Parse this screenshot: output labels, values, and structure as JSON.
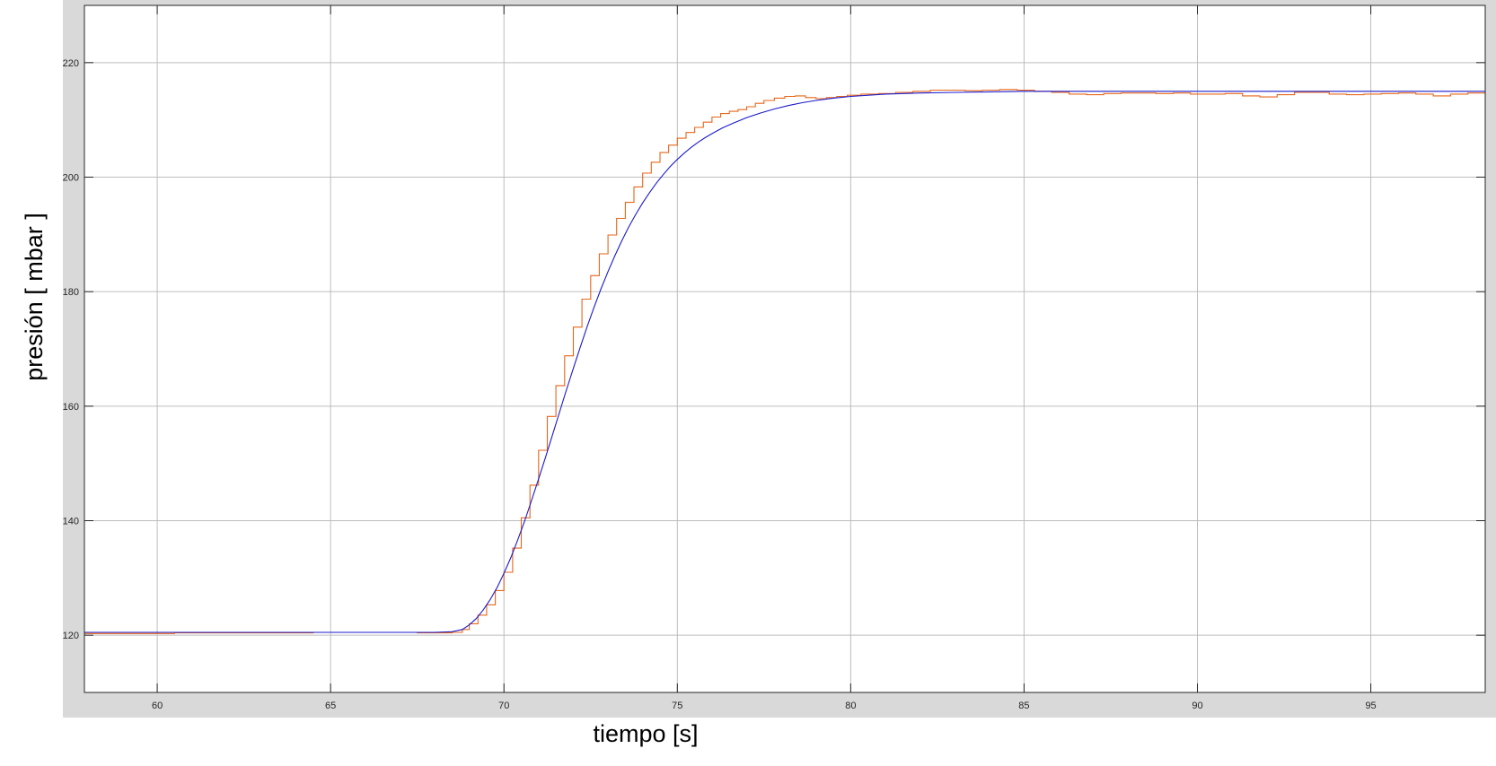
{
  "chart_data": {
    "type": "line",
    "title": "",
    "xlabel": "tiempo [s]",
    "ylabel": "presión [ mbar ]",
    "xlim": [
      57.9,
      98.3
    ],
    "ylim": [
      110,
      230
    ],
    "xticks": [
      60,
      65,
      70,
      75,
      80,
      85,
      90,
      95
    ],
    "yticks": [
      120,
      140,
      160,
      180,
      200,
      220
    ],
    "grid": true,
    "legend": "none",
    "colors": {
      "axes_background": "#ffffff",
      "figure_background": "#d9d9d9",
      "grid": "#bdbdbd",
      "axis_box": "#262626"
    },
    "series": [
      {
        "style": "line",
        "color": "#1a1acc",
        "x": [
          57.9,
          60,
          62,
          64,
          66,
          67,
          68,
          68.5,
          68.8,
          69.0,
          69.2,
          69.4,
          69.6,
          69.8,
          70.0,
          70.2,
          70.4,
          70.6,
          70.8,
          71.0,
          71.2,
          71.4,
          71.6,
          71.8,
          72.0,
          72.2,
          72.4,
          72.6,
          72.8,
          73.0,
          73.2,
          73.4,
          73.6,
          73.8,
          74.0,
          74.2,
          74.4,
          74.6,
          74.8,
          75.0,
          75.2,
          75.4,
          75.6,
          75.8,
          76.0,
          76.3,
          76.6,
          77.0,
          77.4,
          77.8,
          78.2,
          78.6,
          79.0,
          79.5,
          80.0,
          81.0,
          82.0,
          83.0,
          84.0,
          85.0,
          86.0,
          88.0,
          90.0,
          92.0,
          94.0,
          96.0,
          98.3
        ],
        "y": [
          120.5,
          120.5,
          120.5,
          120.5,
          120.5,
          120.5,
          120.5,
          120.6,
          121.0,
          121.8,
          122.9,
          124.4,
          126.2,
          128.3,
          130.8,
          133.6,
          136.7,
          140.0,
          143.6,
          147.3,
          151.1,
          155.0,
          158.9,
          162.8,
          166.6,
          170.3,
          173.9,
          177.3,
          180.5,
          183.5,
          186.3,
          188.9,
          191.3,
          193.5,
          195.5,
          197.3,
          199.0,
          200.5,
          201.9,
          203.1,
          204.2,
          205.2,
          206.1,
          206.9,
          207.6,
          208.6,
          209.4,
          210.4,
          211.2,
          211.9,
          212.5,
          213.0,
          213.4,
          213.8,
          214.1,
          214.5,
          214.7,
          214.8,
          214.9,
          215.0,
          215.0,
          215.0,
          215.0,
          215.0,
          215.0,
          215.0,
          215.0
        ]
      },
      {
        "style": "step",
        "color": "#e8661a",
        "x": [
          57.9,
          60.5,
          63.0,
          64.5,
          66.5,
          67.5,
          68.5,
          68.8,
          69.0,
          69.25,
          69.5,
          69.75,
          70.0,
          70.25,
          70.5,
          70.75,
          71.0,
          71.25,
          71.5,
          71.75,
          72.0,
          72.25,
          72.5,
          72.75,
          73.0,
          73.25,
          73.5,
          73.75,
          74.0,
          74.25,
          74.5,
          74.75,
          75.0,
          75.25,
          75.5,
          75.75,
          76.0,
          76.25,
          76.5,
          76.75,
          77.0,
          77.25,
          77.5,
          77.8,
          78.1,
          78.4,
          78.7,
          79.0,
          79.3,
          79.6,
          79.9,
          80.3,
          80.8,
          81.3,
          81.8,
          82.3,
          82.8,
          83.3,
          83.8,
          84.3,
          84.8,
          85.3,
          85.8,
          86.3,
          86.8,
          87.3,
          87.8,
          88.3,
          88.8,
          89.3,
          89.8,
          90.3,
          90.8,
          91.3,
          91.8,
          92.3,
          92.8,
          93.3,
          93.8,
          94.3,
          94.8,
          95.3,
          95.8,
          96.3,
          96.8,
          97.3,
          97.8
        ],
        "y": [
          120.3,
          120.4,
          120.4,
          120.5,
          120.5,
          120.4,
          120.5,
          121.0,
          122.0,
          123.5,
          125.3,
          127.8,
          131.0,
          135.2,
          140.5,
          146.2,
          152.3,
          158.2,
          163.6,
          168.8,
          173.8,
          178.7,
          182.8,
          186.6,
          189.9,
          192.8,
          195.6,
          198.3,
          200.7,
          202.6,
          204.3,
          205.6,
          206.8,
          207.8,
          208.7,
          209.6,
          210.5,
          211.1,
          211.5,
          211.8,
          212.3,
          212.9,
          213.4,
          213.8,
          214.1,
          214.2,
          213.9,
          213.7,
          213.9,
          214.1,
          214.3,
          214.5,
          214.6,
          214.8,
          215.0,
          215.2,
          215.2,
          215.1,
          215.2,
          215.3,
          215.2,
          215.0,
          214.8,
          214.5,
          214.4,
          214.6,
          214.7,
          214.7,
          214.6,
          214.7,
          214.5,
          214.5,
          214.6,
          214.2,
          214.0,
          214.4,
          214.8,
          214.8,
          214.5,
          214.4,
          214.5,
          214.6,
          214.7,
          214.5,
          214.2,
          214.5,
          214.7
        ]
      }
    ]
  }
}
